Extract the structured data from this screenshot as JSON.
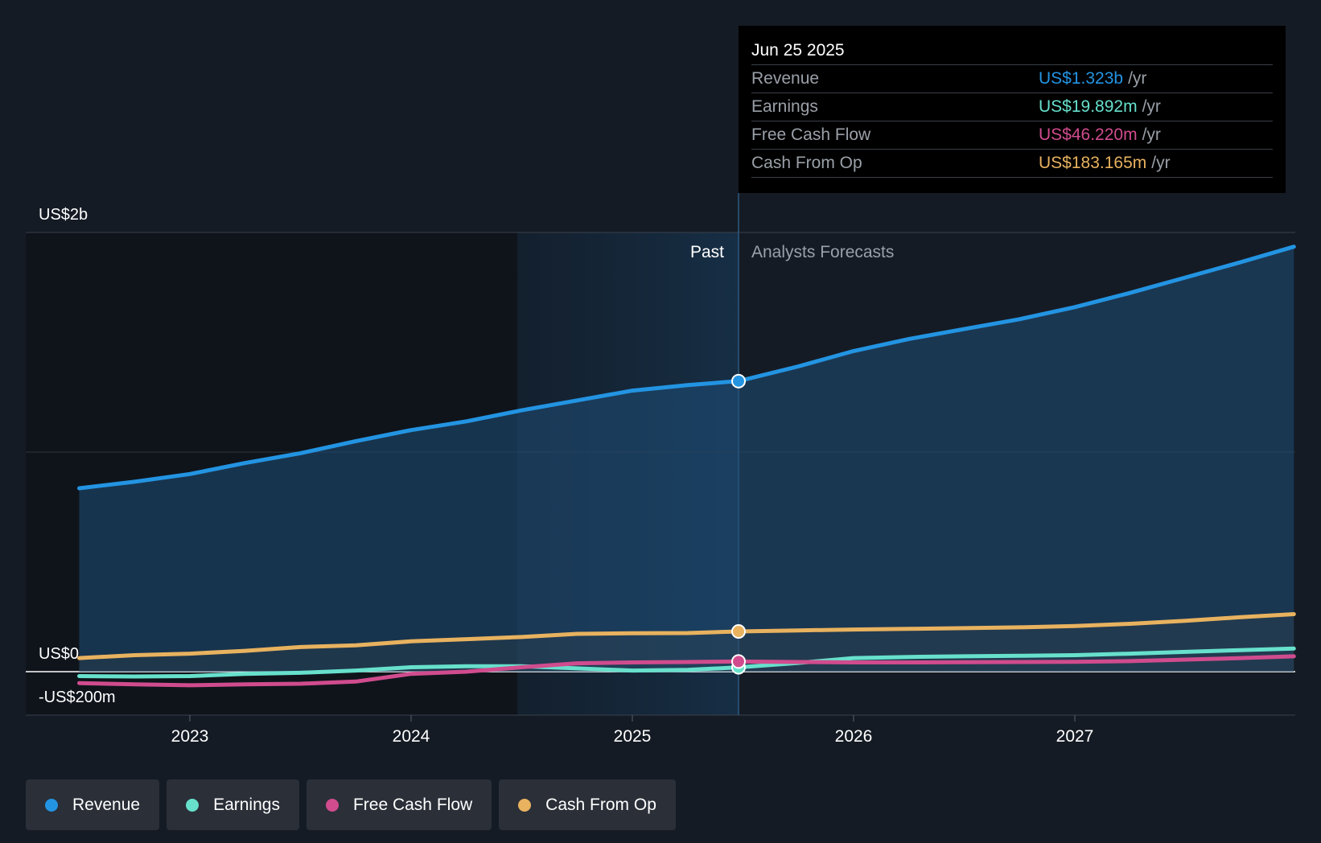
{
  "chart_data": {
    "type": "line",
    "x_unit": "year",
    "y_unit": "US$m",
    "ylim": [
      -200,
      2000
    ],
    "y_ticks": [
      {
        "value": 2000,
        "label": "US$2b"
      },
      {
        "value": 0,
        "label": "US$0"
      },
      {
        "value": -200,
        "label": "-US$200m"
      }
    ],
    "x_ticks": [
      {
        "value": 2023,
        "label": "2023"
      },
      {
        "value": 2024,
        "label": "2024"
      },
      {
        "value": 2025,
        "label": "2025"
      },
      {
        "value": 2026,
        "label": "2026"
      },
      {
        "value": 2027,
        "label": "2027"
      }
    ],
    "xlim": [
      2022.25,
      2027.99
    ],
    "past_label": "Past",
    "forecast_label": "Analysts Forecasts",
    "divider_x": 2025.48,
    "highlight_start_x": 2024.48,
    "series": [
      {
        "name": "Revenue",
        "color": "#2394e2",
        "fill": true,
        "points": [
          [
            2022.5,
            835
          ],
          [
            2022.75,
            865
          ],
          [
            2023.0,
            900
          ],
          [
            2023.25,
            950
          ],
          [
            2023.5,
            995
          ],
          [
            2023.75,
            1050
          ],
          [
            2024.0,
            1100
          ],
          [
            2024.25,
            1140
          ],
          [
            2024.5,
            1190
          ],
          [
            2024.75,
            1235
          ],
          [
            2025.0,
            1280
          ],
          [
            2025.25,
            1305
          ],
          [
            2025.48,
            1323
          ],
          [
            2025.75,
            1390
          ],
          [
            2026.0,
            1460
          ],
          [
            2026.25,
            1515
          ],
          [
            2026.5,
            1560
          ],
          [
            2026.75,
            1605
          ],
          [
            2027.0,
            1660
          ],
          [
            2027.25,
            1725
          ],
          [
            2027.5,
            1795
          ],
          [
            2027.75,
            1865
          ],
          [
            2027.99,
            1935
          ]
        ]
      },
      {
        "name": "Earnings",
        "color": "#67e0cc",
        "fill": false,
        "points": [
          [
            2022.5,
            -20
          ],
          [
            2022.75,
            -22
          ],
          [
            2023.0,
            -20
          ],
          [
            2023.25,
            -10
          ],
          [
            2023.5,
            -5
          ],
          [
            2023.75,
            5
          ],
          [
            2024.0,
            20
          ],
          [
            2024.25,
            25
          ],
          [
            2024.5,
            25
          ],
          [
            2024.75,
            15
          ],
          [
            2025.0,
            5
          ],
          [
            2025.25,
            8
          ],
          [
            2025.48,
            19.892
          ],
          [
            2025.75,
            40
          ],
          [
            2026.0,
            62
          ],
          [
            2026.25,
            67
          ],
          [
            2026.5,
            70
          ],
          [
            2026.75,
            72
          ],
          [
            2027.0,
            75
          ],
          [
            2027.25,
            82
          ],
          [
            2027.5,
            90
          ],
          [
            2027.75,
            98
          ],
          [
            2027.99,
            105
          ]
        ]
      },
      {
        "name": "Free Cash Flow",
        "color": "#d04c8e",
        "fill": false,
        "points": [
          [
            2022.5,
            -52
          ],
          [
            2022.75,
            -58
          ],
          [
            2023.0,
            -62
          ],
          [
            2023.25,
            -58
          ],
          [
            2023.5,
            -55
          ],
          [
            2023.75,
            -45
          ],
          [
            2024.0,
            -10
          ],
          [
            2024.25,
            0
          ],
          [
            2024.5,
            20
          ],
          [
            2024.75,
            38
          ],
          [
            2025.0,
            42
          ],
          [
            2025.25,
            44
          ],
          [
            2025.48,
            46.22
          ],
          [
            2025.75,
            44
          ],
          [
            2026.0,
            42
          ],
          [
            2026.25,
            42
          ],
          [
            2026.5,
            43
          ],
          [
            2026.75,
            44
          ],
          [
            2027.0,
            45
          ],
          [
            2027.25,
            48
          ],
          [
            2027.5,
            55
          ],
          [
            2027.75,
            62
          ],
          [
            2027.99,
            70
          ]
        ]
      },
      {
        "name": "Cash From Op",
        "color": "#e8b25f",
        "fill": true,
        "points": [
          [
            2022.5,
            62
          ],
          [
            2022.75,
            75
          ],
          [
            2023.0,
            82
          ],
          [
            2023.25,
            95
          ],
          [
            2023.5,
            112
          ],
          [
            2023.75,
            120
          ],
          [
            2024.0,
            138
          ],
          [
            2024.25,
            148
          ],
          [
            2024.5,
            158
          ],
          [
            2024.75,
            172
          ],
          [
            2025.0,
            175
          ],
          [
            2025.25,
            176
          ],
          [
            2025.48,
            183.165
          ],
          [
            2025.75,
            188
          ],
          [
            2026.0,
            192
          ],
          [
            2026.25,
            195
          ],
          [
            2026.5,
            198
          ],
          [
            2026.75,
            202
          ],
          [
            2027.0,
            208
          ],
          [
            2027.25,
            218
          ],
          [
            2027.5,
            232
          ],
          [
            2027.75,
            248
          ],
          [
            2027.99,
            262
          ]
        ]
      }
    ],
    "highlight_index": 12
  },
  "tooltip": {
    "date": "Jun 25 2025",
    "unit": "/yr",
    "rows": [
      {
        "label": "Revenue",
        "value": "US$1.323b",
        "color": "#2394e2"
      },
      {
        "label": "Earnings",
        "value": "US$19.892m",
        "color": "#67e0cc"
      },
      {
        "label": "Free Cash Flow",
        "value": "US$46.220m",
        "color": "#d04c8e"
      },
      {
        "label": "Cash From Op",
        "value": "US$183.165m",
        "color": "#e8b25f"
      }
    ]
  },
  "legend": [
    {
      "label": "Revenue",
      "color": "#2394e2"
    },
    {
      "label": "Earnings",
      "color": "#67e0cc"
    },
    {
      "label": "Free Cash Flow",
      "color": "#d04c8e"
    },
    {
      "label": "Cash From Op",
      "color": "#e8b25f"
    }
  ]
}
